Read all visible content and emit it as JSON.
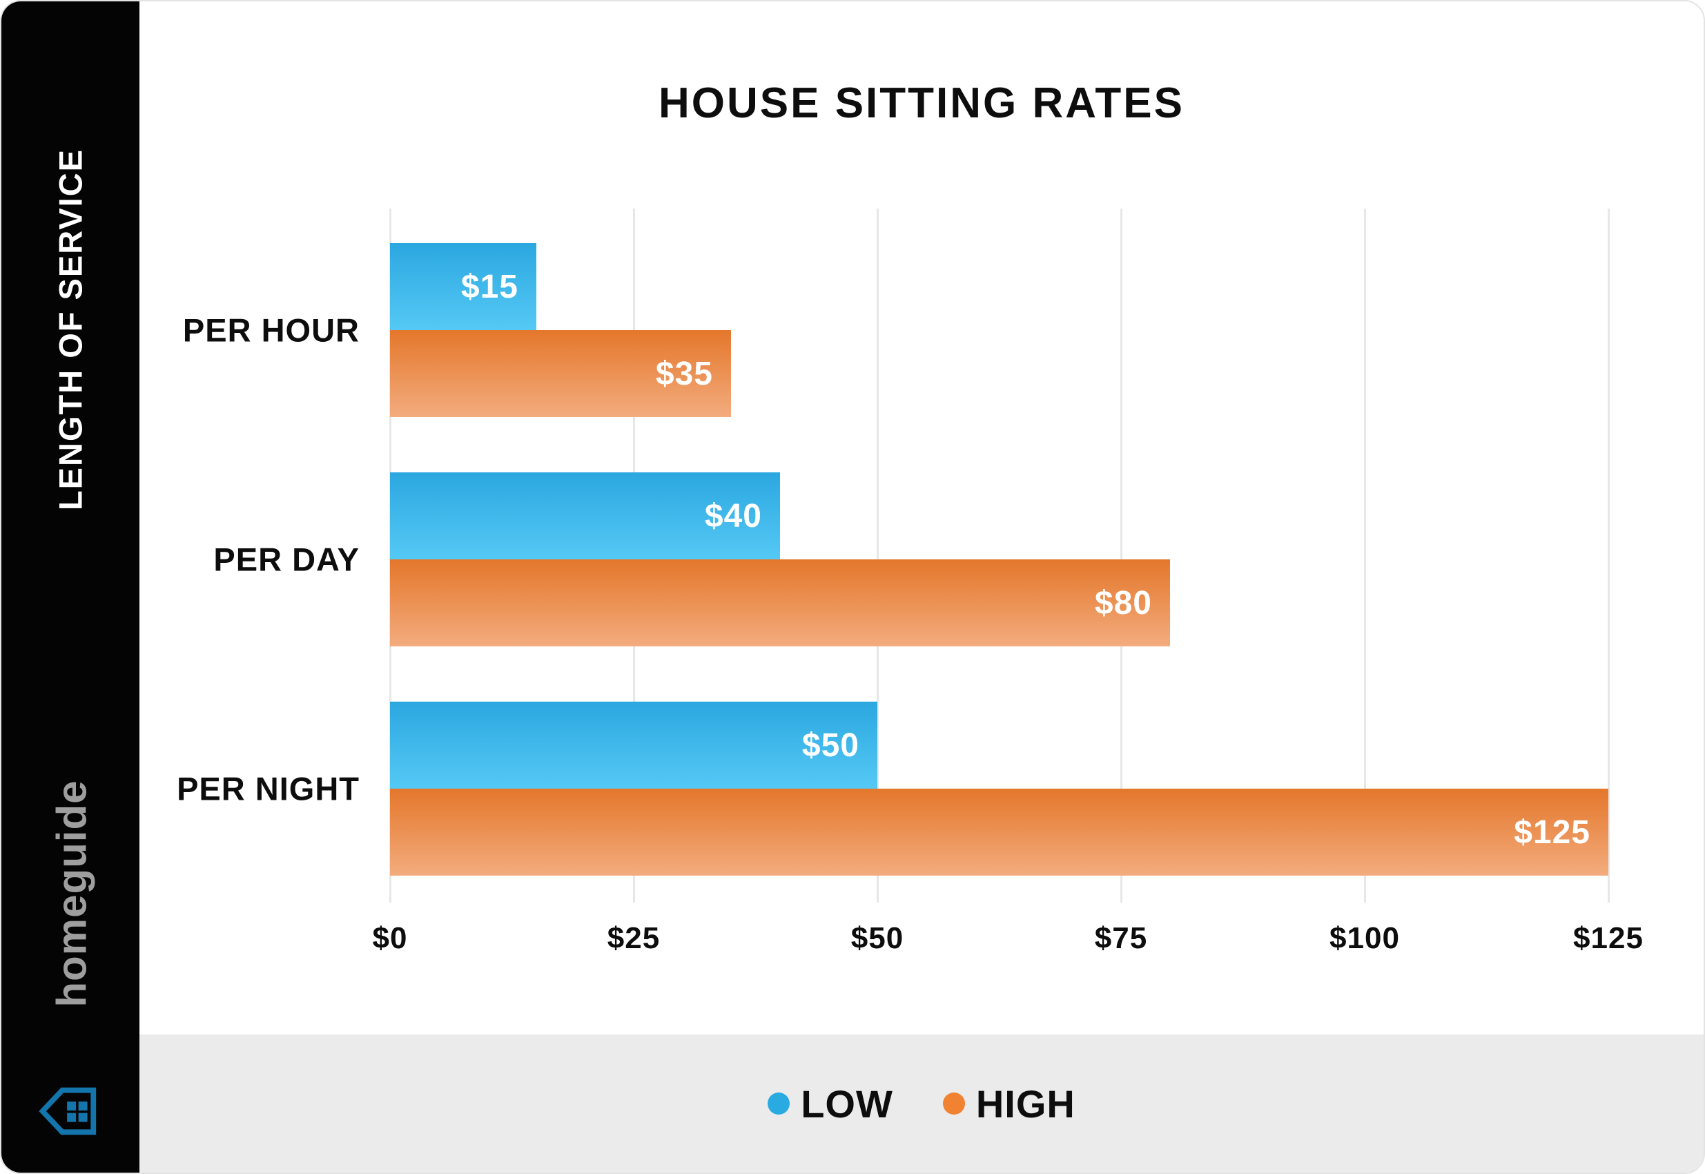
{
  "sidebar": {
    "vertical_title": "LENGTH OF SERVICE",
    "brand": "homeguide",
    "brand_text_color": "#9e9e9e",
    "house_icon_color": "#1375ac",
    "background_color": "#040404"
  },
  "chart_data": {
    "type": "bar",
    "orientation": "horizontal",
    "title": "HOUSE SITTING RATES",
    "categories": [
      "PER HOUR",
      "PER DAY",
      "PER NIGHT"
    ],
    "series": [
      {
        "name": "LOW",
        "values": [
          15,
          40,
          50
        ],
        "value_labels": [
          "$15",
          "$40",
          "$50"
        ],
        "color_top": "#2ba7e0",
        "color_bottom": "#55c9f5"
      },
      {
        "name": "HIGH",
        "values": [
          35,
          80,
          125
        ],
        "value_labels": [
          "$35",
          "$80",
          "$125"
        ],
        "color_top": "#e4772b",
        "color_bottom": "#f3ac7e"
      }
    ],
    "x_ticks": [
      {
        "label": "$0",
        "value": 0
      },
      {
        "label": "$25",
        "value": 25
      },
      {
        "label": "$50",
        "value": 50
      },
      {
        "label": "$75",
        "value": 75
      },
      {
        "label": "$100",
        "value": 100
      },
      {
        "label": "$125",
        "value": 125
      }
    ],
    "xlim": [
      0,
      125
    ],
    "grid": true,
    "gridline_color": "#e7e7e7",
    "legend_position": "bottom",
    "legend": [
      {
        "label": "LOW",
        "color": "#29abe2"
      },
      {
        "label": "HIGH",
        "color": "#f08232"
      }
    ]
  }
}
